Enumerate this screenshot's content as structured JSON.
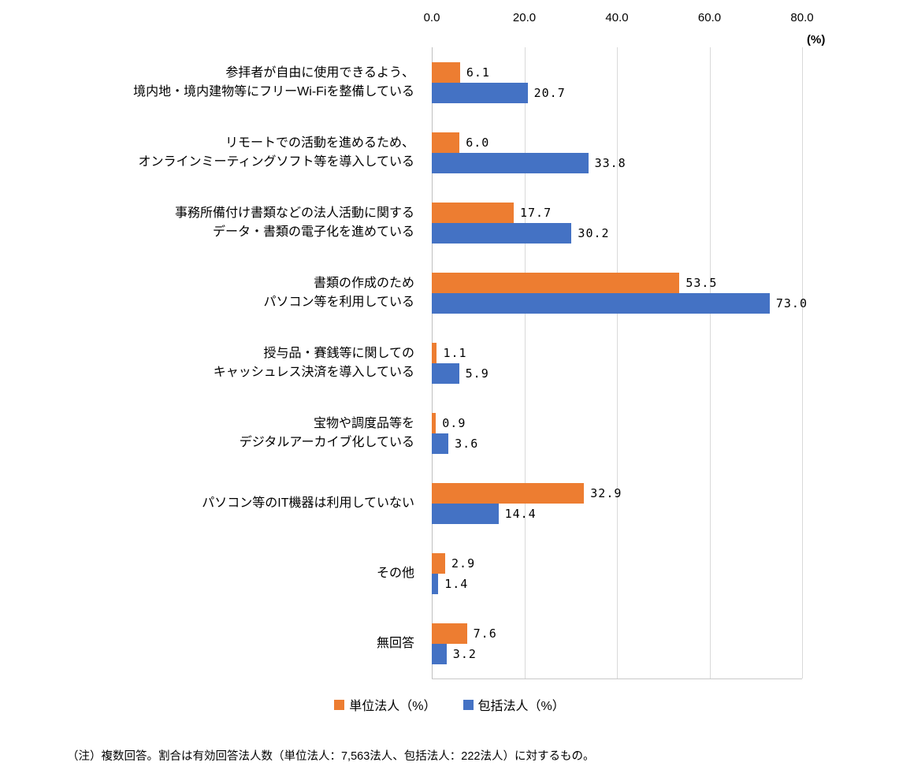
{
  "chart_data": {
    "type": "bar",
    "orientation": "horizontal",
    "title": "",
    "unit_label": "(%)",
    "xlabel": "",
    "ylabel": "",
    "xlim": [
      0,
      80
    ],
    "xticks": [
      "0.0",
      "20.0",
      "40.0",
      "60.0",
      "80.0"
    ],
    "grid": true,
    "legend_position": "bottom",
    "categories": [
      [
        "参拝者が自由に使用できるよう、",
        "境内地・境内建物等にフリーWi-Fiを整備している"
      ],
      [
        "リモートでの活動を進めるため、",
        "オンラインミーティングソフト等を導入している"
      ],
      [
        "事務所備付け書類などの法人活動に関する",
        "データ・書類の電子化を進めている"
      ],
      [
        "書類の作成のため",
        "パソコン等を利用している"
      ],
      [
        "授与品・賽銭等に関しての",
        "キャッシュレス決済を導入している"
      ],
      [
        "宝物や調度品等を",
        "デジタルアーカイブ化している"
      ],
      [
        "パソコン等のIT機器は利用していない"
      ],
      [
        "その他"
      ],
      [
        "無回答"
      ]
    ],
    "series": [
      {
        "name": "単位法人（%）",
        "color": "#ED7D31",
        "values": [
          6.1,
          6.0,
          17.7,
          53.5,
          1.1,
          0.9,
          32.9,
          2.9,
          7.6
        ]
      },
      {
        "name": "包括法人（%）",
        "color": "#4472C4",
        "values": [
          20.7,
          33.8,
          30.2,
          73.0,
          5.9,
          3.6,
          14.4,
          1.4,
          3.2
        ]
      }
    ]
  },
  "footnote": "（注）複数回答。割合は有効回答法人数（単位法人：7,563法人、包括法人：222法人）に対するもの。"
}
